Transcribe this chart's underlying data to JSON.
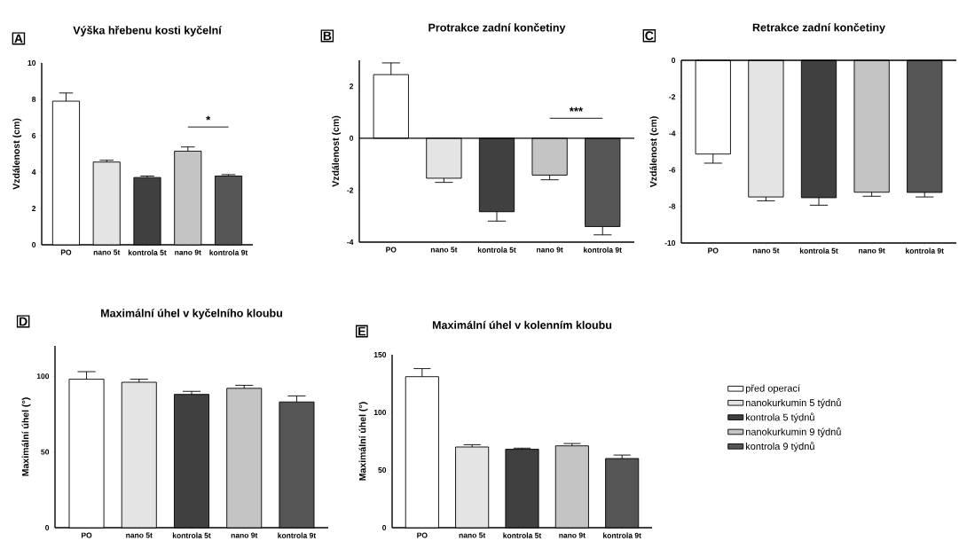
{
  "chart_data": [
    {
      "type": "bar",
      "title": "Výška hřebenu kosti kyčelní",
      "ylabel": "Vzdálenost (cm)",
      "annotations": [
        "A",
        "*"
      ],
      "categories": [
        "PO",
        "nano 5t",
        "kontrola 5t",
        "nano 9t",
        "kontrola 9t"
      ],
      "ylim": [
        0,
        10
      ],
      "yticks": [
        0,
        2,
        4,
        6,
        8,
        10
      ],
      "series": [
        {
          "color": "#ffffff",
          "values": [
            7.9,
            null,
            null,
            null,
            null
          ],
          "errors": [
            [
              7.9,
              8.35
            ],
            null,
            null,
            null,
            null
          ]
        },
        {
          "color": "#e4e4e4",
          "values": [
            null,
            4.55,
            null,
            null,
            null
          ],
          "errors": [
            null,
            [
              4.55,
              4.65
            ],
            null,
            null,
            null
          ]
        },
        {
          "color": "#404040",
          "values": [
            null,
            null,
            3.7,
            null,
            null
          ],
          "errors": [
            null,
            null,
            [
              3.7,
              3.78
            ],
            null,
            null
          ]
        },
        {
          "color": "#c4c4c4",
          "values": [
            null,
            null,
            null,
            5.15,
            null
          ],
          "errors": [
            null,
            null,
            null,
            [
              5.15,
              5.38
            ],
            null
          ]
        },
        {
          "color": "#555555",
          "values": [
            null,
            null,
            null,
            null,
            3.78
          ],
          "errors": [
            null,
            null,
            null,
            null,
            [
              3.78,
              3.86
            ]
          ]
        }
      ]
    },
    {
      "type": "bar",
      "title": "Protrakce zadní končetiny",
      "ylabel": "Vzdálenost (cm)",
      "annotations": [
        "B",
        "***"
      ],
      "categories": [
        "PO",
        "nano 5t",
        "kontrola 5t",
        "nano 9t",
        "kontrola 9t"
      ],
      "ylim": [
        -4,
        3
      ],
      "yticks": [
        -4,
        -2,
        0,
        2
      ],
      "series": [
        {
          "color": "#ffffff",
          "values": [
            2.45,
            null,
            null,
            null,
            null
          ],
          "errors": [
            [
              2.45,
              2.9
            ],
            null,
            null,
            null,
            null
          ]
        },
        {
          "color": "#e4e4e4",
          "values": [
            null,
            -1.54,
            null,
            null,
            null
          ],
          "errors": [
            null,
            [
              -1.7,
              -1.54
            ],
            null,
            null,
            null
          ]
        },
        {
          "color": "#404040",
          "values": [
            null,
            null,
            -2.83,
            null,
            null
          ],
          "errors": [
            null,
            null,
            [
              -3.19,
              -2.83
            ],
            null,
            null
          ]
        },
        {
          "color": "#c4c4c4",
          "values": [
            null,
            null,
            null,
            -1.42,
            null
          ],
          "errors": [
            null,
            null,
            null,
            [
              -1.6,
              -1.42
            ],
            null
          ]
        },
        {
          "color": "#555555",
          "values": [
            null,
            null,
            null,
            null,
            -3.4
          ],
          "errors": [
            null,
            null,
            null,
            null,
            [
              -3.72,
              -3.4
            ]
          ]
        }
      ]
    },
    {
      "type": "bar",
      "title": "Retrakce zadní končetiny",
      "ylabel": "Vzdálenost (cm)",
      "annotations": [
        "C"
      ],
      "categories": [
        "PO",
        "nano 5t",
        "kontrola 5t",
        "nano 9t",
        "kontrola 9t"
      ],
      "ylim": [
        -10,
        0
      ],
      "yticks": [
        -10,
        -8,
        -6,
        -4,
        -2,
        0
      ],
      "series": [
        {
          "color": "#ffffff",
          "values": [
            -5.13,
            null,
            null,
            null,
            null
          ],
          "errors": [
            [
              -5.63,
              -5.13
            ],
            null,
            null,
            null,
            null
          ]
        },
        {
          "color": "#e4e4e4",
          "values": [
            null,
            -7.48,
            null,
            null,
            null
          ],
          "errors": [
            null,
            [
              -7.69,
              -7.48
            ],
            null,
            null,
            null
          ]
        },
        {
          "color": "#404040",
          "values": [
            null,
            null,
            -7.52,
            null,
            null
          ],
          "errors": [
            null,
            null,
            [
              -7.93,
              -7.52
            ],
            null,
            null
          ]
        },
        {
          "color": "#c4c4c4",
          "values": [
            null,
            null,
            null,
            -7.22,
            null
          ],
          "errors": [
            null,
            null,
            null,
            [
              -7.44,
              -7.22
            ],
            null
          ]
        },
        {
          "color": "#555555",
          "values": [
            null,
            null,
            null,
            null,
            -7.23
          ],
          "errors": [
            null,
            null,
            null,
            null,
            [
              -7.48,
              -7.23
            ]
          ]
        }
      ]
    },
    {
      "type": "bar",
      "title": "Maximální úhel v kyčelního kloubu",
      "ylabel": "Maximální úhel (°)",
      "annotations": [
        "D"
      ],
      "categories": [
        "PO",
        "nano 5t",
        "kontrola 5t",
        "nano 9t",
        "kontrola 9t"
      ],
      "ylim": [
        0,
        120
      ],
      "yticks": [
        0,
        50,
        100
      ],
      "series": [
        {
          "color": "#ffffff",
          "values": [
            98,
            null,
            null,
            null,
            null
          ],
          "errors": [
            [
              98,
              103
            ],
            null,
            null,
            null,
            null
          ]
        },
        {
          "color": "#e4e4e4",
          "values": [
            null,
            96,
            null,
            null,
            null
          ],
          "errors": [
            null,
            [
              96,
              98
            ],
            null,
            null,
            null
          ]
        },
        {
          "color": "#404040",
          "values": [
            null,
            null,
            88,
            null,
            null
          ],
          "errors": [
            null,
            null,
            [
              88,
              90
            ],
            null,
            null
          ]
        },
        {
          "color": "#c4c4c4",
          "values": [
            null,
            null,
            null,
            92,
            null
          ],
          "errors": [
            null,
            null,
            null,
            [
              92,
              94
            ],
            null
          ]
        },
        {
          "color": "#555555",
          "values": [
            null,
            null,
            null,
            null,
            83
          ],
          "errors": [
            null,
            null,
            null,
            null,
            [
              83,
              87
            ]
          ]
        }
      ]
    },
    {
      "type": "bar",
      "title": "Maximální úhel v kolenním kloubu",
      "ylabel": "Maximální úhel (°)",
      "annotations": [
        "E"
      ],
      "legend": "right",
      "categories": [
        "PO",
        "nano 5t",
        "kontrola 5t",
        "nano 9t",
        "kontrola 9t"
      ],
      "ylim": [
        0,
        150
      ],
      "yticks": [
        0,
        50,
        100,
        150
      ],
      "series": [
        {
          "name": "před operací",
          "color": "#ffffff",
          "values": [
            131,
            null,
            null,
            null,
            null
          ],
          "errors": [
            [
              131,
              138
            ],
            null,
            null,
            null,
            null
          ]
        },
        {
          "name": "nanokurkumin 5 týdnů",
          "color": "#e4e4e4",
          "values": [
            null,
            70,
            null,
            null,
            null
          ],
          "errors": [
            null,
            [
              70,
              72
            ],
            null,
            null,
            null
          ]
        },
        {
          "name": "kontrola 5 týdnů",
          "color": "#404040",
          "values": [
            null,
            null,
            68,
            null,
            null
          ],
          "errors": [
            null,
            null,
            [
              68,
              69
            ],
            null,
            null
          ]
        },
        {
          "name": "nanokurkumin 9 týdnů",
          "color": "#c4c4c4",
          "values": [
            null,
            null,
            null,
            71,
            null
          ],
          "errors": [
            null,
            null,
            null,
            [
              71,
              73
            ],
            null
          ]
        },
        {
          "name": "kontrola 9 týdnů",
          "color": "#555555",
          "values": [
            null,
            null,
            null,
            null,
            60
          ],
          "errors": [
            null,
            null,
            null,
            null,
            [
              60,
              63
            ]
          ]
        }
      ]
    }
  ]
}
